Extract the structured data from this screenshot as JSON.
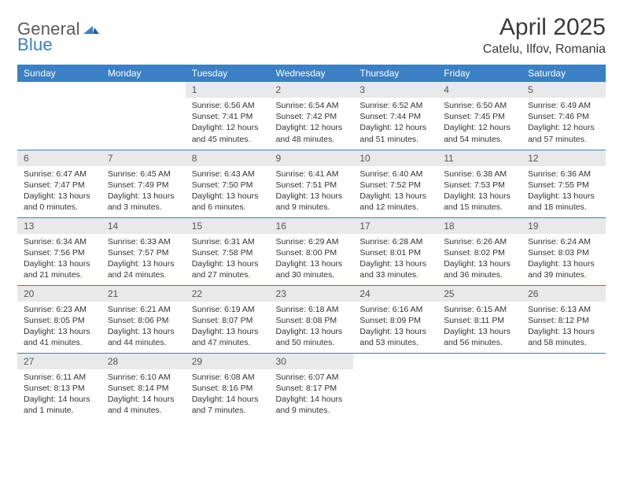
{
  "colors": {
    "header_bg": "#3b7fc4",
    "header_text": "#ffffff",
    "daynum_bg": "#e9e9e9",
    "daynum_text": "#555555",
    "body_text": "#333333",
    "rule": "#3b7fc4",
    "logo_gray": "#5a5a5a",
    "logo_blue": "#3b7fc4",
    "page_bg": "#ffffff"
  },
  "logo": {
    "part1": "General",
    "part2": "Blue"
  },
  "title": "April 2025",
  "location": "Catelu, Ilfov, Romania",
  "weekdays": [
    "Sunday",
    "Monday",
    "Tuesday",
    "Wednesday",
    "Thursday",
    "Friday",
    "Saturday"
  ],
  "weeks": [
    [
      null,
      null,
      {
        "n": "1",
        "sunrise": "Sunrise: 6:56 AM",
        "sunset": "Sunset: 7:41 PM",
        "daylight": "Daylight: 12 hours and 45 minutes."
      },
      {
        "n": "2",
        "sunrise": "Sunrise: 6:54 AM",
        "sunset": "Sunset: 7:42 PM",
        "daylight": "Daylight: 12 hours and 48 minutes."
      },
      {
        "n": "3",
        "sunrise": "Sunrise: 6:52 AM",
        "sunset": "Sunset: 7:44 PM",
        "daylight": "Daylight: 12 hours and 51 minutes."
      },
      {
        "n": "4",
        "sunrise": "Sunrise: 6:50 AM",
        "sunset": "Sunset: 7:45 PM",
        "daylight": "Daylight: 12 hours and 54 minutes."
      },
      {
        "n": "5",
        "sunrise": "Sunrise: 6:49 AM",
        "sunset": "Sunset: 7:46 PM",
        "daylight": "Daylight: 12 hours and 57 minutes."
      }
    ],
    [
      {
        "n": "6",
        "sunrise": "Sunrise: 6:47 AM",
        "sunset": "Sunset: 7:47 PM",
        "daylight": "Daylight: 13 hours and 0 minutes."
      },
      {
        "n": "7",
        "sunrise": "Sunrise: 6:45 AM",
        "sunset": "Sunset: 7:49 PM",
        "daylight": "Daylight: 13 hours and 3 minutes."
      },
      {
        "n": "8",
        "sunrise": "Sunrise: 6:43 AM",
        "sunset": "Sunset: 7:50 PM",
        "daylight": "Daylight: 13 hours and 6 minutes."
      },
      {
        "n": "9",
        "sunrise": "Sunrise: 6:41 AM",
        "sunset": "Sunset: 7:51 PM",
        "daylight": "Daylight: 13 hours and 9 minutes."
      },
      {
        "n": "10",
        "sunrise": "Sunrise: 6:40 AM",
        "sunset": "Sunset: 7:52 PM",
        "daylight": "Daylight: 13 hours and 12 minutes."
      },
      {
        "n": "11",
        "sunrise": "Sunrise: 6:38 AM",
        "sunset": "Sunset: 7:53 PM",
        "daylight": "Daylight: 13 hours and 15 minutes."
      },
      {
        "n": "12",
        "sunrise": "Sunrise: 6:36 AM",
        "sunset": "Sunset: 7:55 PM",
        "daylight": "Daylight: 13 hours and 18 minutes."
      }
    ],
    [
      {
        "n": "13",
        "sunrise": "Sunrise: 6:34 AM",
        "sunset": "Sunset: 7:56 PM",
        "daylight": "Daylight: 13 hours and 21 minutes."
      },
      {
        "n": "14",
        "sunrise": "Sunrise: 6:33 AM",
        "sunset": "Sunset: 7:57 PM",
        "daylight": "Daylight: 13 hours and 24 minutes."
      },
      {
        "n": "15",
        "sunrise": "Sunrise: 6:31 AM",
        "sunset": "Sunset: 7:58 PM",
        "daylight": "Daylight: 13 hours and 27 minutes."
      },
      {
        "n": "16",
        "sunrise": "Sunrise: 6:29 AM",
        "sunset": "Sunset: 8:00 PM",
        "daylight": "Daylight: 13 hours and 30 minutes."
      },
      {
        "n": "17",
        "sunrise": "Sunrise: 6:28 AM",
        "sunset": "Sunset: 8:01 PM",
        "daylight": "Daylight: 13 hours and 33 minutes."
      },
      {
        "n": "18",
        "sunrise": "Sunrise: 6:26 AM",
        "sunset": "Sunset: 8:02 PM",
        "daylight": "Daylight: 13 hours and 36 minutes."
      },
      {
        "n": "19",
        "sunrise": "Sunrise: 6:24 AM",
        "sunset": "Sunset: 8:03 PM",
        "daylight": "Daylight: 13 hours and 39 minutes."
      }
    ],
    [
      {
        "n": "20",
        "sunrise": "Sunrise: 6:23 AM",
        "sunset": "Sunset: 8:05 PM",
        "daylight": "Daylight: 13 hours and 41 minutes."
      },
      {
        "n": "21",
        "sunrise": "Sunrise: 6:21 AM",
        "sunset": "Sunset: 8:06 PM",
        "daylight": "Daylight: 13 hours and 44 minutes."
      },
      {
        "n": "22",
        "sunrise": "Sunrise: 6:19 AM",
        "sunset": "Sunset: 8:07 PM",
        "daylight": "Daylight: 13 hours and 47 minutes."
      },
      {
        "n": "23",
        "sunrise": "Sunrise: 6:18 AM",
        "sunset": "Sunset: 8:08 PM",
        "daylight": "Daylight: 13 hours and 50 minutes."
      },
      {
        "n": "24",
        "sunrise": "Sunrise: 6:16 AM",
        "sunset": "Sunset: 8:09 PM",
        "daylight": "Daylight: 13 hours and 53 minutes."
      },
      {
        "n": "25",
        "sunrise": "Sunrise: 6:15 AM",
        "sunset": "Sunset: 8:11 PM",
        "daylight": "Daylight: 13 hours and 56 minutes."
      },
      {
        "n": "26",
        "sunrise": "Sunrise: 6:13 AM",
        "sunset": "Sunset: 8:12 PM",
        "daylight": "Daylight: 13 hours and 58 minutes."
      }
    ],
    [
      {
        "n": "27",
        "sunrise": "Sunrise: 6:11 AM",
        "sunset": "Sunset: 8:13 PM",
        "daylight": "Daylight: 14 hours and 1 minute."
      },
      {
        "n": "28",
        "sunrise": "Sunrise: 6:10 AM",
        "sunset": "Sunset: 8:14 PM",
        "daylight": "Daylight: 14 hours and 4 minutes."
      },
      {
        "n": "29",
        "sunrise": "Sunrise: 6:08 AM",
        "sunset": "Sunset: 8:16 PM",
        "daylight": "Daylight: 14 hours and 7 minutes."
      },
      {
        "n": "30",
        "sunrise": "Sunrise: 6:07 AM",
        "sunset": "Sunset: 8:17 PM",
        "daylight": "Daylight: 14 hours and 9 minutes."
      },
      null,
      null,
      null
    ]
  ]
}
